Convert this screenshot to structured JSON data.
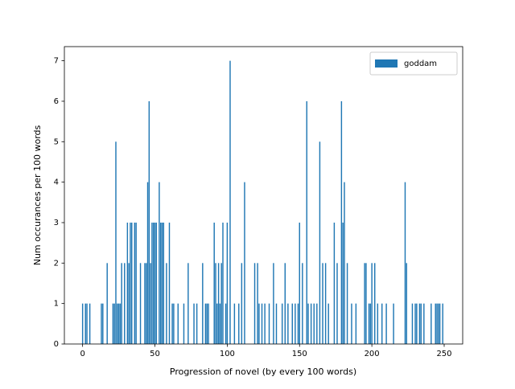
{
  "chart_data": {
    "type": "bar",
    "xlabel": "Progression of novel (by every 100 words)",
    "ylabel": "Num occurances per 100 words",
    "x": [
      0,
      2,
      3,
      5,
      13,
      14,
      17,
      21,
      22,
      23,
      24,
      25,
      26,
      27,
      29,
      31,
      32,
      33,
      34,
      36,
      37,
      40,
      43,
      44,
      45,
      46,
      47,
      48,
      49,
      50,
      51,
      53,
      54,
      55,
      56,
      58,
      60,
      62,
      63,
      66,
      70,
      73,
      77,
      79,
      83,
      85,
      86,
      87,
      91,
      92,
      93,
      94,
      95,
      96,
      97,
      99,
      100,
      102,
      105,
      108,
      110,
      112,
      119,
      121,
      122,
      124,
      126,
      129,
      132,
      134,
      138,
      140,
      142,
      145,
      147,
      149,
      150,
      152,
      155,
      156,
      158,
      160,
      162,
      164,
      166,
      168,
      170,
      174,
      176,
      179,
      180,
      181,
      183,
      186,
      189,
      195,
      196,
      198,
      199,
      200,
      202,
      204,
      207,
      210,
      215,
      223,
      224,
      228,
      230,
      231,
      233,
      234,
      236,
      241,
      244,
      245,
      246,
      247,
      249
    ],
    "series": [
      {
        "name": "goddam",
        "color": "#1f77b4",
        "values": [
          1,
          1,
          1,
          1,
          1,
          1,
          2,
          1,
          1,
          5,
          1,
          1,
          1,
          2,
          2,
          3,
          2,
          3,
          3,
          3,
          3,
          2,
          2,
          2,
          4,
          6,
          2,
          3,
          3,
          3,
          3,
          4,
          3,
          3,
          3,
          2,
          3,
          1,
          1,
          1,
          1,
          2,
          1,
          1,
          2,
          1,
          1,
          1,
          3,
          2,
          1,
          2,
          1,
          2,
          3,
          1,
          3,
          7,
          1,
          1,
          2,
          4,
          2,
          2,
          1,
          1,
          1,
          1,
          2,
          1,
          1,
          2,
          1,
          1,
          1,
          1,
          3,
          2,
          6,
          1,
          1,
          1,
          1,
          5,
          2,
          2,
          1,
          3,
          2,
          6,
          3,
          4,
          2,
          1,
          1,
          2,
          2,
          1,
          1,
          2,
          2,
          1,
          1,
          1,
          1,
          4,
          2,
          1,
          1,
          1,
          1,
          1,
          1,
          1,
          1,
          1,
          1,
          1,
          1
        ]
      }
    ],
    "xlim": [
      -12.6,
      262.8
    ],
    "ylim": [
      0,
      7.35
    ],
    "xticks": [
      0,
      50,
      100,
      150,
      200,
      250
    ],
    "yticks": [
      0,
      1,
      2,
      3,
      4,
      5,
      6,
      7
    ],
    "bar_width": 0.8,
    "legend": "upper right"
  }
}
